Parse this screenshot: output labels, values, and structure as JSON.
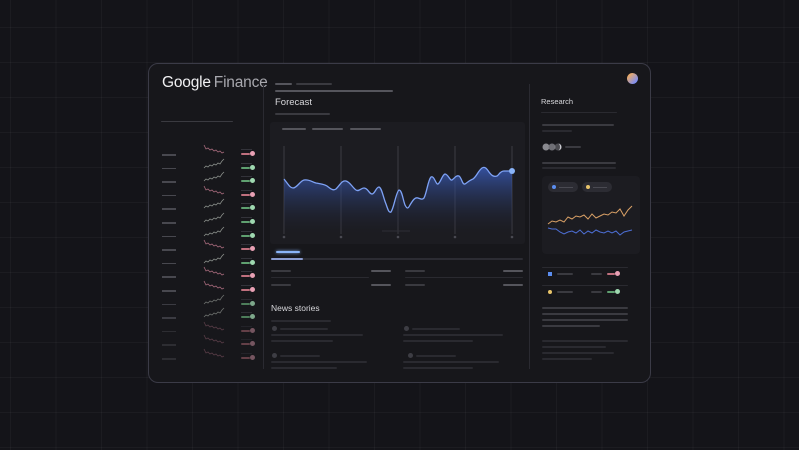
{
  "app": {
    "logo_brand": "Google",
    "logo_product": "Finance"
  },
  "main": {
    "forecast_title": "Forecast",
    "news_title": "News stories",
    "chart_tabs_count": 3
  },
  "right_panel": {
    "research_title": "Research",
    "legend": [
      {
        "color": "#5b8def",
        "label": ""
      },
      {
        "color": "#e8c46a",
        "label": ""
      }
    ],
    "compare_rows": [
      {
        "marker_color": "#5b8def",
        "marker_shape": "square",
        "change": "down"
      },
      {
        "marker_color": "#e8c46a",
        "marker_shape": "circle",
        "change": "up"
      }
    ]
  },
  "watchlist": {
    "rows": [
      {
        "trend": "down"
      },
      {
        "trend": "up"
      },
      {
        "trend": "up"
      },
      {
        "trend": "down"
      },
      {
        "trend": "up"
      },
      {
        "trend": "up"
      },
      {
        "trend": "up"
      },
      {
        "trend": "down"
      },
      {
        "trend": "up"
      },
      {
        "trend": "down"
      },
      {
        "trend": "down"
      },
      {
        "trend": "up"
      },
      {
        "trend": "up"
      },
      {
        "trend": "down"
      },
      {
        "trend": "down"
      },
      {
        "trend": "down"
      }
    ]
  },
  "colors": {
    "accent_blue": "#8ab4f8",
    "chart_line": "#7ea2f5",
    "up_green": "#6fcf8a",
    "down_red": "#e8a0b4",
    "mini_orange": "#d9a066",
    "mini_blue": "#4d6fd6"
  },
  "icons": {
    "avatar": "user-avatar-icon",
    "status_up": "up-indicator-icon",
    "status_down": "down-indicator-icon"
  }
}
